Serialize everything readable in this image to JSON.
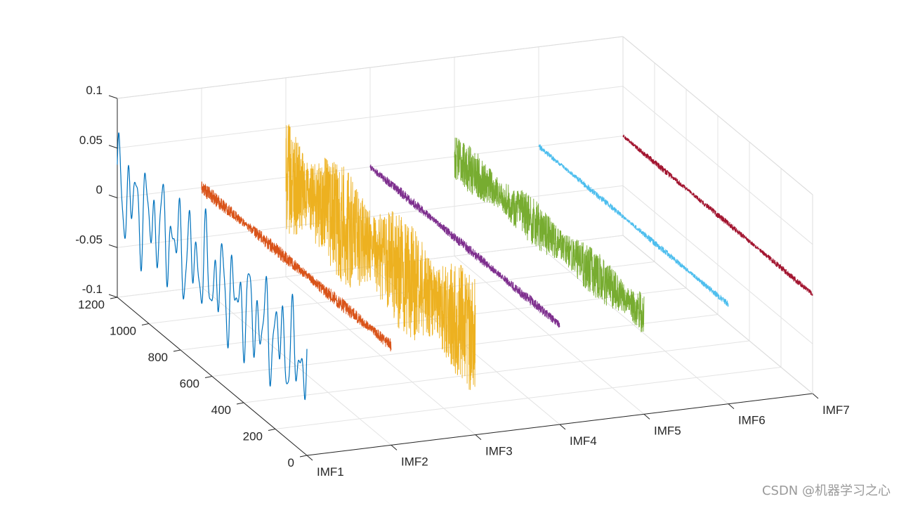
{
  "chart_data": {
    "type": "line",
    "view": "3d",
    "title": "",
    "xlabel": "",
    "ylabel": "",
    "zlabel": "",
    "grid": true,
    "x_categories": [
      "IMF1",
      "IMF2",
      "IMF3",
      "IMF4",
      "IMF5",
      "IMF6",
      "IMF7"
    ],
    "y_ticks": [
      0,
      200,
      400,
      600,
      800,
      1000,
      1200
    ],
    "y_range": [
      0,
      1200
    ],
    "z_ticks": [
      -0.1,
      -0.05,
      0,
      0.05,
      0.1
    ],
    "z_tick_labels": [
      "-0.1",
      "-0.05",
      "0",
      "0.05",
      "0.1"
    ],
    "z_range": [
      -0.1,
      0.1
    ],
    "series": [
      {
        "name": "IMF1",
        "color": "#0072BD",
        "style": "slow",
        "amplitude": 0.06,
        "samples": 1200
      },
      {
        "name": "IMF2",
        "color": "#D95319",
        "style": "dense",
        "amplitude": 0.007,
        "samples": 1200
      },
      {
        "name": "IMF3",
        "color": "#EDB120",
        "style": "dense",
        "amplitude": 0.06,
        "samples": 1200
      },
      {
        "name": "IMF4",
        "color": "#7E2F8E",
        "style": "dense",
        "amplitude": 0.005,
        "samples": 1200
      },
      {
        "name": "IMF5",
        "color": "#77AC30",
        "style": "dense",
        "amplitude": 0.024,
        "samples": 1200
      },
      {
        "name": "IMF6",
        "color": "#4DBEEE",
        "style": "dense",
        "amplitude": 0.003,
        "samples": 1200
      },
      {
        "name": "IMF7",
        "color": "#A2142F",
        "style": "dense",
        "amplitude": 0.003,
        "samples": 1200
      }
    ]
  },
  "watermark": "CSDN @机器学习之心"
}
